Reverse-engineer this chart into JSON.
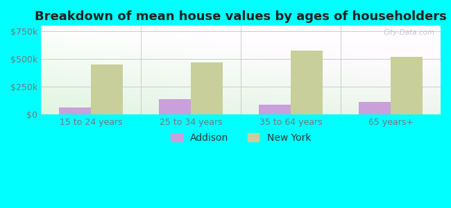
{
  "title": "Breakdown of mean house values by ages of householders",
  "categories": [
    "15 to 24 years",
    "25 to 34 years",
    "35 to 64 years",
    "65 years+"
  ],
  "addison_values": [
    62000,
    140000,
    90000,
    110000
  ],
  "newyork_values": [
    450000,
    470000,
    575000,
    520000
  ],
  "addison_color": "#c9a0dc",
  "newyork_color": "#c8cf9a",
  "background_color": "#00ffff",
  "plot_bg_color": "#eaf5e0",
  "yticks": [
    0,
    250000,
    500000,
    750000
  ],
  "ytick_labels": [
    "$0",
    "$250k",
    "$500k",
    "$750k"
  ],
  "ylim": [
    0,
    800000
  ],
  "bar_width": 0.32,
  "legend_labels": [
    "Addison",
    "New York"
  ],
  "watermark": "City-Data.com",
  "title_fontsize": 13,
  "tick_fontsize": 9,
  "legend_fontsize": 10,
  "tick_color": "#777777",
  "grid_color": "#cccccc"
}
